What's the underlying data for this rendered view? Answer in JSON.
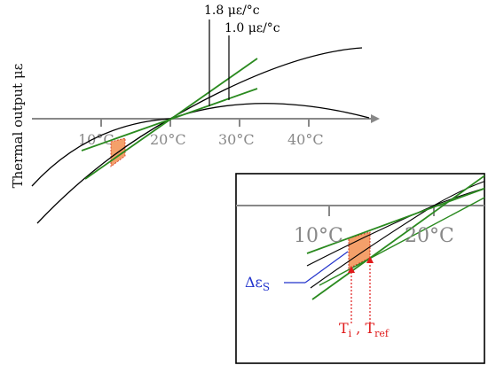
{
  "y_axis_label": "Thermal output με",
  "slope_labels": {
    "upper": "1.8 με/°c",
    "lower": "1.0 με/°c"
  },
  "temperatures": {
    "main": [
      "10°C",
      "20°C",
      "30°C",
      "40°C"
    ],
    "inset": [
      "10°C",
      "20°C"
    ]
  },
  "inset_labels": {
    "strain": "Δε",
    "strain_sub": "S",
    "temp_prefix": "T",
    "temp_i_sub": "i",
    "temp_sep": " , T",
    "temp_ref_sub": "ref"
  },
  "colors": {
    "curve": "#000000",
    "tangent": "#2a8a1f",
    "highlight": "#f4a06a",
    "highlight_edge": "#d0301e",
    "axis": "#888888",
    "tick_text": "#888888",
    "strain_label": "#2233cc",
    "temp_label": "#e01a1a"
  }
}
